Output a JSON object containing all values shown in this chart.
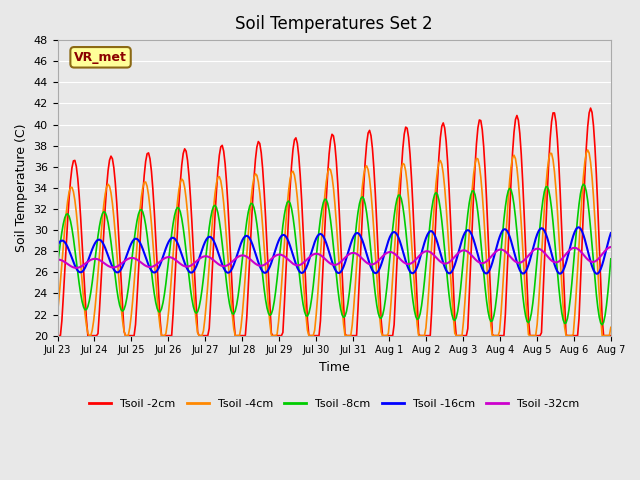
{
  "title": "Soil Temperatures Set 2",
  "xlabel": "Time",
  "ylabel": "Soil Temperature (C)",
  "ylim": [
    20,
    48
  ],
  "yticks": [
    20,
    22,
    24,
    26,
    28,
    30,
    32,
    34,
    36,
    38,
    40,
    42,
    44,
    46,
    48
  ],
  "xtick_labels": [
    "Jul 23",
    "Jul 24",
    "Jul 25",
    "Jul 26",
    "Jul 27",
    "Jul 28",
    "Jul 29",
    "Jul 30",
    "Jul 31",
    "Aug 1",
    "Aug 2",
    "Aug 3",
    "Aug 4",
    "Aug 5",
    "Aug 6",
    "Aug 7"
  ],
  "annotation": "VR_met",
  "background_color": "#e8e8e8",
  "plot_bg_color": "#e8e8e8",
  "series": [
    {
      "label": "Tsoil -2cm",
      "color": "#ff0000"
    },
    {
      "label": "Tsoil -4cm",
      "color": "#ff8800"
    },
    {
      "label": "Tsoil -8cm",
      "color": "#00cc00"
    },
    {
      "label": "Tsoil -16cm",
      "color": "#0000ff"
    },
    {
      "label": "Tsoil -32cm",
      "color": "#cc00cc"
    }
  ]
}
